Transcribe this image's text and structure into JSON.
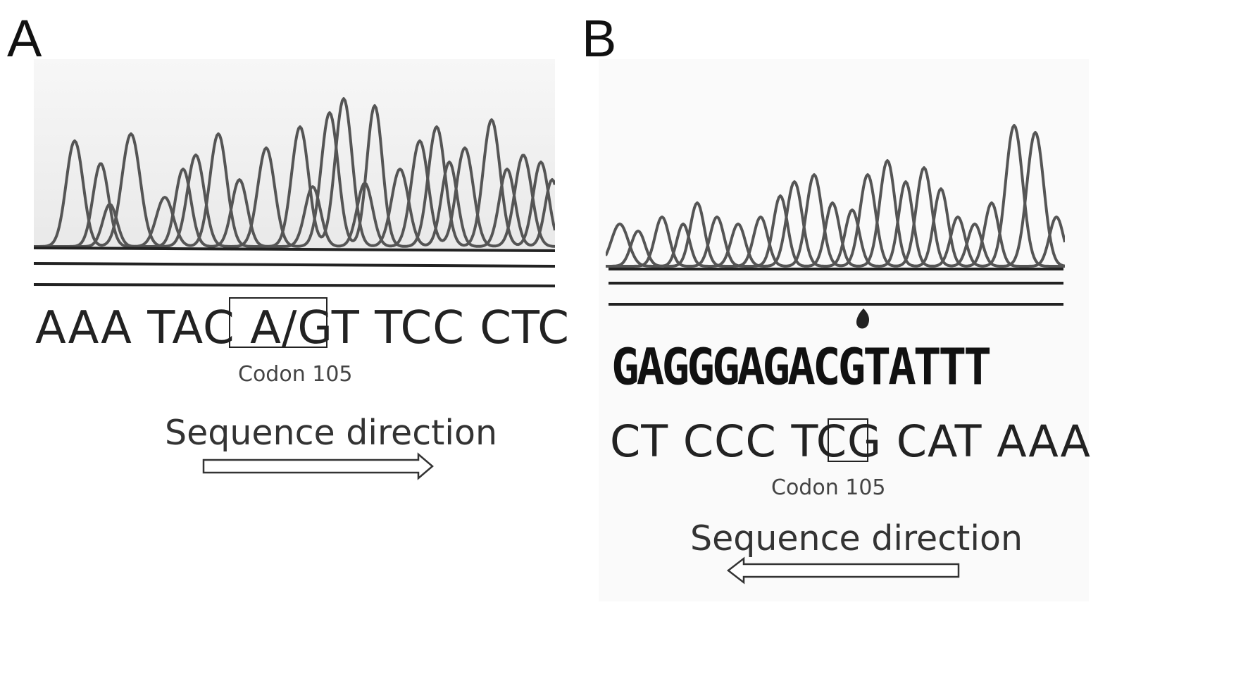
{
  "panels": [
    {
      "letter": "A",
      "sequence": "AAA TAC A/GT TCC CTC",
      "codon_label": "Codon 105",
      "direction_label": "Sequence direction",
      "direction": "right"
    },
    {
      "letter": "B",
      "called_bases": "GAGGGAGACGTATTT",
      "sequence": "CT CCC TCG CAT AAA",
      "codon_label": "Codon 105",
      "direction_label": "Sequence direction",
      "direction": "left"
    }
  ],
  "colors": {
    "trace": "#555555",
    "baseline": "#222222",
    "panel_bg_a": "#f2f2f2",
    "panel_bg_b": "#fafafa"
  }
}
